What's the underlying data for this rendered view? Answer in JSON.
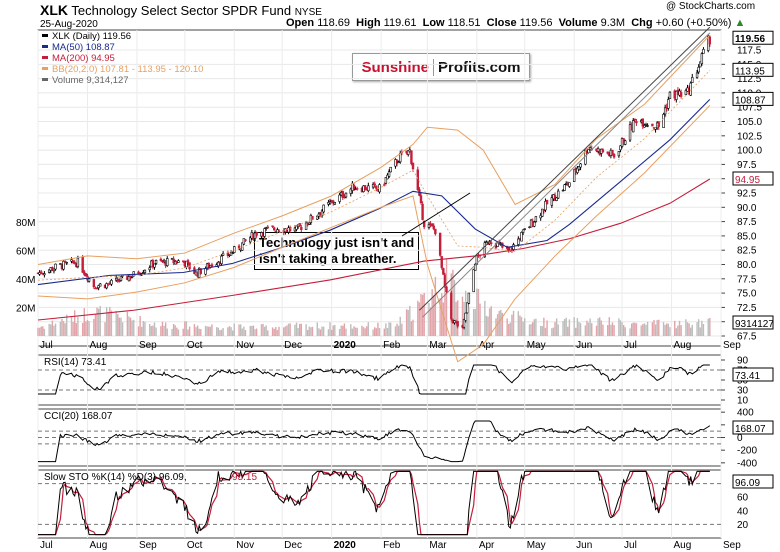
{
  "header": {
    "ticker": "XLK",
    "name": "Technology Select Sector SPDR Fund",
    "exchange": "NYSE",
    "date": "25-Aug-2020",
    "open_label": "Open",
    "open": "118.69",
    "high_label": "High",
    "high": "119.61",
    "low_label": "Low",
    "low": "118.51",
    "close_label": "Close",
    "close": "119.56",
    "volume_label": "Volume",
    "volume": "9.3M",
    "chg_label": "Chg",
    "chg": "+0.60 (+0.50%)",
    "chg_arrow": "▲",
    "copyright": "@ StockCharts.com"
  },
  "logo": {
    "part1": "Sunshine",
    "part2": "Profits.com",
    "color1": "#c8102e",
    "color2": "#111111"
  },
  "annotation": {
    "line1": "Technology just isn't and",
    "line2": "isn't taking a breather."
  },
  "legend": {
    "price": "XLK (Daily) 119.56",
    "ma50": "MA(50) 108.87",
    "ma200": "MA(200) 94.95",
    "bb": "BB(20,2.0) 107.81 - 113.95 - 120.10",
    "volume": "Volume 9,314,127"
  },
  "colors": {
    "up": "#000000",
    "down": "#c41e3a",
    "ma50": "#1a2a8c",
    "ma200": "#c41e3a",
    "bb": "#e8a060",
    "vol": "#c8c8c8",
    "osc_fill": "#2e6e2e",
    "osc_fill_neg": "#7a2a2a"
  },
  "price_axis": {
    "ticks": [
      "117.5",
      "115.0",
      "112.5",
      "110.0",
      "107.5",
      "105.0",
      "102.5",
      "100.0",
      "97.5",
      "95.0",
      "92.5",
      "90.0",
      "87.5",
      "85.0",
      "82.5",
      "80.0",
      "77.5",
      "75.0",
      "72.5",
      "70.0",
      "67.5"
    ]
  },
  "price_tags": {
    "close": "119.56",
    "bb_upper": "120.10",
    "bb_mid": "113.95",
    "ma50": "108.87",
    "ma200": "94.95",
    "volume": "9314127"
  },
  "volume_axis": {
    "ticks": [
      "80M",
      "60M",
      "40M",
      "20M"
    ]
  },
  "x_axis": {
    "months": [
      "Jul",
      "Aug",
      "Sep",
      "Oct",
      "Nov",
      "Dec",
      "2020",
      "Feb",
      "Mar",
      "Apr",
      "May",
      "Jun",
      "Jul",
      "Aug",
      "Sep"
    ]
  },
  "rsi": {
    "label": "RSI(14) 73.41",
    "value": "73.41",
    "ticks": [
      "90",
      "70",
      "50",
      "30",
      "10"
    ]
  },
  "cci": {
    "label": "CCI(20) 168.07",
    "value": "168.07",
    "ticks": [
      "400",
      "200",
      "0",
      "-200",
      "-400"
    ]
  },
  "sto": {
    "label_k": "Slow STO %K(14) %D(3) 96.09,",
    "label_d": "95.15",
    "value": "96.09",
    "ticks": [
      "80",
      "60",
      "40",
      "20"
    ]
  },
  "chart_data": {
    "type": "line",
    "title": "XLK Technology Select Sector SPDR Fund NYSE",
    "x_start": "2019-07-01",
    "x_end": "2020-09-01",
    "ylim": [
      67.5,
      121
    ],
    "series": [
      {
        "name": "XLK (Daily)",
        "points": [
          [
            "2019-07-01",
            78.5
          ],
          [
            "2019-07-15",
            79.8
          ],
          [
            "2019-07-26",
            80.4
          ],
          [
            "2019-08-05",
            76.3
          ],
          [
            "2019-08-15",
            76.6
          ],
          [
            "2019-08-30",
            78.2
          ],
          [
            "2019-09-12",
            80.3
          ],
          [
            "2019-09-30",
            80.6
          ],
          [
            "2019-10-08",
            78.4
          ],
          [
            "2019-10-31",
            82.2
          ],
          [
            "2019-11-15",
            85.6
          ],
          [
            "2019-11-29",
            86.4
          ],
          [
            "2019-12-10",
            86.0
          ],
          [
            "2019-12-31",
            90.6
          ],
          [
            "2020-01-15",
            93.6
          ],
          [
            "2020-01-31",
            93.2
          ],
          [
            "2020-02-12",
            98.6
          ],
          [
            "2020-02-19",
            99.8
          ],
          [
            "2020-02-28",
            87.2
          ],
          [
            "2020-03-06",
            86.0
          ],
          [
            "2020-03-12",
            76.0
          ],
          [
            "2020-03-16",
            70.5
          ],
          [
            "2020-03-23",
            68.5
          ],
          [
            "2020-03-31",
            80.6
          ],
          [
            "2020-04-09",
            84.4
          ],
          [
            "2020-04-21",
            82.2
          ],
          [
            "2020-04-30",
            85.5
          ],
          [
            "2020-05-15",
            90.6
          ],
          [
            "2020-05-29",
            94.4
          ],
          [
            "2020-06-10",
            100.6
          ],
          [
            "2020-06-26",
            99.0
          ],
          [
            "2020-07-10",
            105.5
          ],
          [
            "2020-07-24",
            104.1
          ],
          [
            "2020-07-31",
            109.6
          ],
          [
            "2020-08-11",
            110.0
          ],
          [
            "2020-08-25",
            119.56
          ]
        ]
      },
      {
        "name": "MA(50)",
        "points": [
          [
            "2019-07-01",
            76.5
          ],
          [
            "2019-08-15",
            78.1
          ],
          [
            "2019-09-30",
            78.6
          ],
          [
            "2019-10-31",
            80.2
          ],
          [
            "2019-11-29",
            82.8
          ],
          [
            "2019-12-31",
            86.0
          ],
          [
            "2020-01-31",
            89.8
          ],
          [
            "2020-02-21",
            92.8
          ],
          [
            "2020-03-10",
            92.0
          ],
          [
            "2020-03-31",
            86.2
          ],
          [
            "2020-04-20",
            83.0
          ],
          [
            "2020-05-15",
            84.2
          ],
          [
            "2020-05-29",
            87.0
          ],
          [
            "2020-06-30",
            94.5
          ],
          [
            "2020-07-31",
            101.8
          ],
          [
            "2020-08-25",
            108.87
          ]
        ]
      },
      {
        "name": "MA(200)",
        "points": [
          [
            "2019-07-01",
            70.3
          ],
          [
            "2019-08-30",
            72.0
          ],
          [
            "2019-10-31",
            74.6
          ],
          [
            "2019-12-31",
            77.3
          ],
          [
            "2020-02-28",
            80.6
          ],
          [
            "2020-03-31",
            81.5
          ],
          [
            "2020-04-30",
            82.8
          ],
          [
            "2020-05-29",
            84.5
          ],
          [
            "2020-06-30",
            87.2
          ],
          [
            "2020-07-31",
            90.7
          ],
          [
            "2020-08-25",
            94.95
          ]
        ]
      },
      {
        "name": "BB(20,2.0)",
        "upper": [
          [
            "2019-07-01",
            80.0
          ],
          [
            "2019-08-01",
            81.5
          ],
          [
            "2019-09-01",
            81.0
          ],
          [
            "2019-10-01",
            82.0
          ],
          [
            "2019-11-01",
            85.5
          ],
          [
            "2019-12-01",
            88.5
          ],
          [
            "2020-01-01",
            92.0
          ],
          [
            "2020-02-01",
            97.0
          ],
          [
            "2020-02-21",
            101.0
          ],
          [
            "2020-03-01",
            104.0
          ],
          [
            "2020-03-20",
            103.5
          ],
          [
            "2020-04-05",
            100.0
          ],
          [
            "2020-04-25",
            90.5
          ],
          [
            "2020-05-20",
            94.0
          ],
          [
            "2020-06-15",
            102.0
          ],
          [
            "2020-07-15",
            108.0
          ],
          [
            "2020-08-25",
            120.1
          ]
        ],
        "lower": [
          [
            "2019-07-01",
            74.5
          ],
          [
            "2019-08-01",
            74.0
          ],
          [
            "2019-09-01",
            75.2
          ],
          [
            "2019-10-01",
            76.8
          ],
          [
            "2019-11-01",
            79.5
          ],
          [
            "2019-12-01",
            83.0
          ],
          [
            "2020-01-01",
            86.5
          ],
          [
            "2020-02-01",
            90.0
          ],
          [
            "2020-02-21",
            92.0
          ],
          [
            "2020-03-01",
            80.0
          ],
          [
            "2020-03-20",
            63.0
          ],
          [
            "2020-04-05",
            66.0
          ],
          [
            "2020-04-25",
            74.0
          ],
          [
            "2020-05-20",
            81.5
          ],
          [
            "2020-06-15",
            88.5
          ],
          [
            "2020-07-15",
            96.0
          ],
          [
            "2020-08-25",
            107.81
          ]
        ]
      },
      {
        "name": "Volume",
        "points": [
          [
            "2019-07-01",
            6
          ],
          [
            "2019-08-05",
            17
          ],
          [
            "2019-09-15",
            8
          ],
          [
            "2019-10-15",
            7
          ],
          [
            "2019-11-15",
            6
          ],
          [
            "2019-12-15",
            7
          ],
          [
            "2020-01-15",
            7
          ],
          [
            "2020-02-10",
            7
          ],
          [
            "2020-02-27",
            24
          ],
          [
            "2020-03-12",
            40
          ],
          [
            "2020-03-20",
            33
          ],
          [
            "2020-04-15",
            15
          ],
          [
            "2020-05-15",
            9
          ],
          [
            "2020-06-15",
            10
          ],
          [
            "2020-07-15",
            8
          ],
          [
            "2020-08-25",
            9.3
          ]
        ]
      }
    ]
  }
}
